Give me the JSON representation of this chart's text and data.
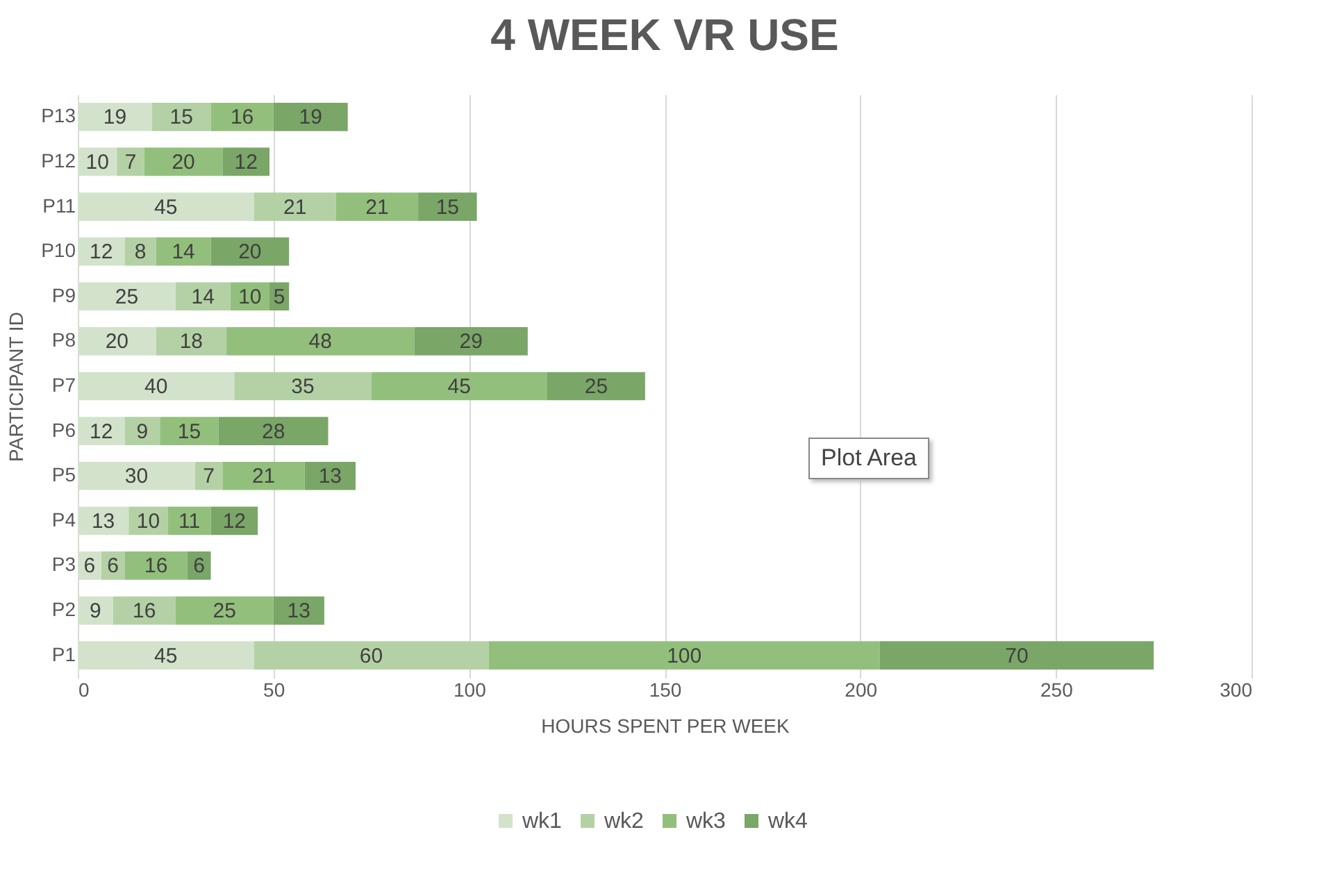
{
  "chart_data": {
    "type": "bar",
    "orientation": "horizontal",
    "stacked": true,
    "title": "4 WEEK VR USE",
    "xlabel": "HOURS SPENT PER WEEK",
    "ylabel": "PARTICIPANT ID",
    "categories": [
      "P13",
      "P12",
      "P11",
      "P10",
      "P9",
      "P8",
      "P7",
      "P6",
      "P5",
      "P4",
      "P3",
      "P2",
      "P1"
    ],
    "series": [
      {
        "name": "wk1",
        "color": "#d3e3cb",
        "values": [
          19,
          10,
          45,
          12,
          25,
          20,
          40,
          12,
          30,
          13,
          6,
          9,
          45
        ]
      },
      {
        "name": "wk2",
        "color": "#b3d1a5",
        "values": [
          15,
          7,
          21,
          8,
          14,
          18,
          35,
          9,
          7,
          10,
          6,
          16,
          60
        ]
      },
      {
        "name": "wk3",
        "color": "#93bf7c",
        "values": [
          16,
          20,
          21,
          14,
          10,
          48,
          45,
          15,
          21,
          11,
          16,
          25,
          100
        ]
      },
      {
        "name": "wk4",
        "color": "#7aa668",
        "values": [
          19,
          12,
          15,
          20,
          5,
          29,
          25,
          28,
          13,
          12,
          6,
          13,
          70
        ]
      }
    ],
    "xlim": [
      0,
      300
    ],
    "xticks": [
      0,
      50,
      100,
      150,
      200,
      250,
      300
    ],
    "grid": "x",
    "legend": "bottom",
    "data_labels": true,
    "annotations": [
      "Plot Area"
    ]
  }
}
